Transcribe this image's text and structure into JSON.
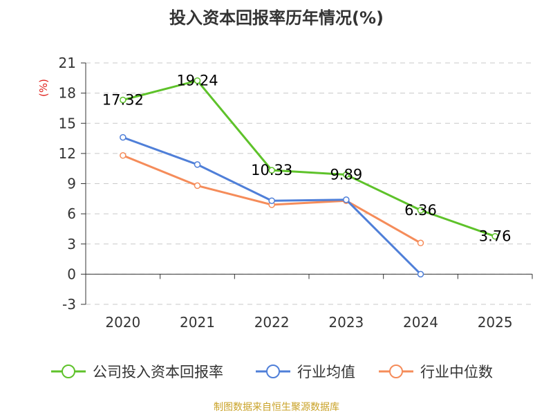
{
  "chart_data": {
    "type": "line",
    "title": "投入资本回报率历年情况(%)",
    "ylabel": "(%)",
    "categories": [
      "2020",
      "2021",
      "2022",
      "2023",
      "2024",
      "2025"
    ],
    "ylim": [
      -3,
      21
    ],
    "yticks": [
      21,
      18,
      15,
      12,
      9,
      6,
      3,
      0,
      -3
    ],
    "grid": true,
    "legend_position": "bottom",
    "series": [
      {
        "name": "公司投入资本回报率",
        "color": "#5ec22a",
        "values": [
          17.32,
          19.24,
          10.33,
          9.89,
          6.36,
          3.76
        ],
        "labels": [
          "17.32",
          "19.24",
          "10.33",
          "9.89",
          "6.36",
          "3.76"
        ]
      },
      {
        "name": "行业均值",
        "color": "#4f7fd8",
        "values": [
          13.6,
          10.9,
          7.3,
          7.4,
          0,
          null
        ]
      },
      {
        "name": "行业中位数",
        "color": "#f58c5a",
        "values": [
          11.8,
          8.8,
          6.9,
          7.3,
          3.1,
          null
        ]
      }
    ]
  },
  "source": "制图数据来自恒生聚源数据库"
}
